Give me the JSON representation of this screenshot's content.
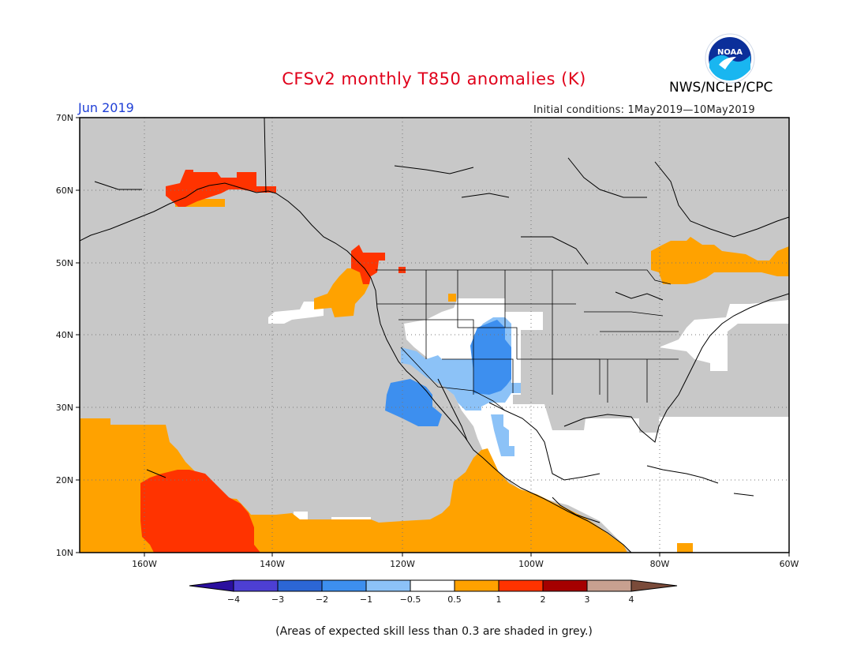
{
  "title": "CFSv2 monthly T850 anomalies (K)",
  "month_label": "Jun 2019",
  "agency_label": "NWS/NCEP/CPC",
  "logo_text": "NOAA",
  "initial_conditions": "Initial conditions: 1May2019—10May2019",
  "footer_note": "(Areas of expected skill less than 0.3 are shaded in grey.)",
  "axes": {
    "lat_labels": [
      "70N",
      "60N",
      "50N",
      "40N",
      "30N",
      "20N",
      "10N"
    ],
    "lon_labels": [
      "160W",
      "140W",
      "120W",
      "100W",
      "80W",
      "60W"
    ]
  },
  "colorbar": {
    "labels": [
      "−4",
      "−3",
      "−2",
      "−1",
      "−0.5",
      "0.5",
      "1",
      "2",
      "3",
      "4"
    ],
    "colors": [
      "#2a0f9e",
      "#4d3fd3",
      "#2c66d5",
      "#3d8fef",
      "#8cc2f7",
      "#ffffff",
      "#ffa200",
      "#ff3300",
      "#a50000",
      "#c8a090",
      "#7a4b3a"
    ]
  },
  "colors": {
    "grey_low_skill": "#c8c8c8",
    "title": "#e0001a",
    "month": "#1f3fd6"
  }
}
